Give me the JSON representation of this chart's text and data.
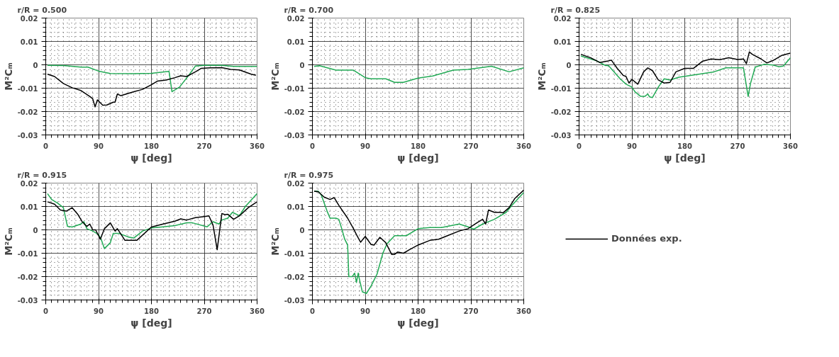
{
  "chart_data": [
    {
      "type": "line",
      "title": "r/R = 0.500",
      "xlabel": "ψ [deg]",
      "ylabel": "M²Cₘ",
      "xlim": [
        0,
        360
      ],
      "ylim": [
        -0.03,
        0.02
      ],
      "xticks": [
        0,
        90,
        180,
        270,
        360
      ],
      "yticks": [
        -0.03,
        -0.02,
        -0.01,
        0,
        0.01,
        0.02
      ],
      "grid": true,
      "series": [
        {
          "color": "#22aa55",
          "x": [
            3,
            30,
            60,
            72,
            90,
            110,
            150,
            180,
            210,
            215,
            228,
            245,
            255,
            270,
            300,
            320,
            360
          ],
          "values": [
            -0.0002,
            -0.0003,
            -0.001,
            -0.001,
            -0.0027,
            -0.0037,
            -0.0038,
            -0.0036,
            -0.0028,
            -0.0115,
            -0.0095,
            -0.004,
            -0.0005,
            -0.0002,
            -0.0002,
            -0.0007,
            -0.0007
          ]
        },
        {
          "color": "#000000",
          "x": [
            3,
            15,
            30,
            45,
            60,
            75,
            80,
            84,
            88,
            97,
            104,
            115,
            118,
            122,
            128,
            150,
            165,
            180,
            190,
            205,
            220,
            230,
            240,
            255,
            265,
            280,
            300,
            315,
            330,
            350,
            358
          ],
          "values": [
            -0.004,
            -0.005,
            -0.008,
            -0.0098,
            -0.011,
            -0.0135,
            -0.0145,
            -0.018,
            -0.015,
            -0.0173,
            -0.0172,
            -0.016,
            -0.016,
            -0.0125,
            -0.0132,
            -0.0115,
            -0.0105,
            -0.0085,
            -0.007,
            -0.0065,
            -0.0055,
            -0.0047,
            -0.005,
            -0.003,
            -0.0015,
            -0.0013,
            -0.0012,
            -0.002,
            -0.0022,
            -0.004,
            -0.0045
          ]
        }
      ]
    },
    {
      "type": "line",
      "title": "r/R = 0.700",
      "xlabel": "ψ [deg]",
      "ylabel": "M²Cₘ",
      "xlim": [
        0,
        360
      ],
      "ylim": [
        -0.03,
        0.02
      ],
      "xticks": [
        0,
        90,
        180,
        270,
        360
      ],
      "yticks": [
        -0.03,
        -0.02,
        -0.01,
        0,
        0.01,
        0.02
      ],
      "grid": true,
      "series": [
        {
          "color": "#22aa55",
          "x": [
            3,
            12,
            40,
            70,
            90,
            100,
            125,
            140,
            155,
            180,
            205,
            240,
            265,
            285,
            305,
            335,
            360
          ],
          "values": [
            -0.0007,
            -0.0004,
            -0.0023,
            -0.0023,
            -0.0055,
            -0.006,
            -0.006,
            -0.0075,
            -0.0075,
            -0.0057,
            -0.0048,
            -0.0023,
            -0.002,
            -0.0013,
            -0.0006,
            -0.003,
            -0.0013
          ]
        }
      ]
    },
    {
      "type": "line",
      "title": "r/R = 0.825",
      "xlabel": "ψ [deg]",
      "ylabel": "M²Cₘ",
      "xlim": [
        0,
        360
      ],
      "ylim": [
        -0.03,
        0.02
      ],
      "xticks": [
        0,
        90,
        180,
        270,
        360
      ],
      "yticks": [
        -0.03,
        -0.02,
        -0.01,
        0,
        0.01,
        0.02
      ],
      "grid": true,
      "series": [
        {
          "color": "#22aa55",
          "x": [
            3,
            30,
            45,
            50,
            70,
            80,
            90,
            95,
            105,
            112,
            117,
            120,
            125,
            135,
            145,
            155,
            170,
            200,
            230,
            250,
            275,
            280,
            288,
            292,
            300,
            315,
            330,
            340,
            348,
            360
          ],
          "values": [
            0.0038,
            0.0017,
            -0.0003,
            -0.0003,
            -0.006,
            -0.0083,
            -0.0095,
            -0.0115,
            -0.0135,
            -0.0135,
            -0.0125,
            -0.0137,
            -0.014,
            -0.0095,
            -0.006,
            -0.0065,
            -0.0053,
            -0.0042,
            -0.003,
            -0.0013,
            -0.0013,
            -0.0013,
            -0.0135,
            -0.008,
            -0.001,
            0.0002,
            -0.0001,
            -0.0008,
            -0.0005,
            0.003
          ]
        },
        {
          "color": "#000000",
          "x": [
            3,
            20,
            35,
            50,
            55,
            65,
            75,
            80,
            85,
            90,
            100,
            110,
            117,
            125,
            135,
            145,
            155,
            165,
            180,
            195,
            210,
            225,
            240,
            255,
            270,
            280,
            285,
            290,
            295,
            310,
            320,
            330,
            345,
            360
          ],
          "values": [
            0.0045,
            0.003,
            0.001,
            0.0017,
            0.002,
            -0.0015,
            -0.0045,
            -0.005,
            -0.0078,
            -0.0062,
            -0.0083,
            -0.003,
            -0.0013,
            -0.0025,
            -0.0065,
            -0.0078,
            -0.0075,
            -0.003,
            -0.0015,
            -0.0015,
            0.0015,
            0.0025,
            0.0022,
            0.003,
            0.0023,
            0.0025,
            0.0005,
            0.0055,
            0.0045,
            0.0025,
            0.0008,
            0.0018,
            0.004,
            0.005
          ]
        }
      ]
    },
    {
      "type": "line",
      "title": "r/R = 0.915",
      "xlabel": "ψ [deg]",
      "ylabel": "M²Cₘ",
      "xlim": [
        0,
        360
      ],
      "ylim": [
        -0.03,
        0.02
      ],
      "xticks": [
        0,
        90,
        180,
        270,
        360
      ],
      "yticks": [
        -0.03,
        -0.02,
        -0.01,
        0,
        0.01,
        0.02
      ],
      "grid": true,
      "series": [
        {
          "color": "#22aa55",
          "x": [
            3,
            10,
            20,
            30,
            37,
            45,
            60,
            65,
            70,
            80,
            90,
            95,
            100,
            110,
            115,
            125,
            140,
            150,
            165,
            180,
            200,
            220,
            240,
            250,
            275,
            285,
            295,
            300,
            310,
            318,
            330,
            340,
            360
          ],
          "values": [
            0.0155,
            0.013,
            0.0115,
            0.0095,
            0.0015,
            0.0012,
            0.0025,
            0.0035,
            0.0005,
            -0.0005,
            -0.002,
            -0.0045,
            -0.008,
            -0.0055,
            -0.0015,
            -0.0015,
            -0.003,
            -0.0035,
            -0.0005,
            0.0008,
            0.0013,
            0.0018,
            0.003,
            0.003,
            0.0013,
            0.0035,
            0.0025,
            0.0042,
            0.005,
            0.0075,
            0.006,
            0.01,
            0.0155
          ]
        },
        {
          "color": "#000000",
          "x": [
            3,
            15,
            25,
            35,
            45,
            55,
            62,
            70,
            75,
            80,
            85,
            93,
            100,
            110,
            118,
            122,
            135,
            155,
            180,
            200,
            220,
            230,
            240,
            255,
            270,
            278,
            285,
            292,
            300,
            305,
            310,
            320,
            330,
            345,
            360
          ],
          "values": [
            0.012,
            0.011,
            0.0085,
            0.008,
            0.0095,
            0.0065,
            0.0035,
            0.0015,
            0.0025,
            0,
            0,
            -0.004,
            0.0005,
            0.003,
            -0.0005,
            0.0005,
            -0.0045,
            -0.0045,
            0.0012,
            0.0025,
            0.0037,
            0.0047,
            0.0042,
            0.0052,
            0.0057,
            0.006,
            0.002,
            -0.0085,
            0.007,
            0.0065,
            0.0067,
            0.0045,
            0.006,
            0.0095,
            0.012
          ]
        }
      ]
    },
    {
      "type": "line",
      "title": "r/R = 0.975",
      "xlabel": "ψ [deg]",
      "ylabel": "M²Cₘ",
      "xlim": [
        0,
        360
      ],
      "ylim": [
        -0.03,
        0.02
      ],
      "xticks": [
        0,
        90,
        180,
        270,
        360
      ],
      "yticks": [
        -0.03,
        -0.02,
        -0.01,
        0,
        0.01,
        0.02
      ],
      "grid": true,
      "legend": "right",
      "series": [
        {
          "color": "#22aa55",
          "x": [
            3,
            10,
            15,
            25,
            30,
            40,
            45,
            50,
            55,
            60,
            62,
            68,
            72,
            75,
            78,
            80,
            85,
            92,
            100,
            110,
            120,
            127,
            140,
            160,
            180,
            200,
            220,
            250,
            265,
            275,
            290,
            310,
            330,
            340,
            360
          ],
          "values": [
            0.0165,
            0.0165,
            0.015,
            0.008,
            0.005,
            0.005,
            0.0045,
            0.0005,
            -0.004,
            -0.0065,
            -0.02,
            -0.02,
            -0.0185,
            -0.0225,
            -0.0185,
            -0.021,
            -0.0265,
            -0.0272,
            -0.024,
            -0.019,
            -0.01,
            -0.006,
            -0.0025,
            -0.0025,
            0.0005,
            0.001,
            0.001,
            0.0025,
            0.0013,
            0.0003,
            0.0025,
            0.0045,
            0.0075,
            0.0105,
            0.016
          ]
        },
        {
          "name": "Données exp.",
          "color": "#000000",
          "x": [
            3,
            10,
            20,
            30,
            37,
            45,
            60,
            70,
            75,
            82,
            90,
            100,
            105,
            115,
            125,
            135,
            140,
            145,
            155,
            165,
            180,
            200,
            215,
            230,
            250,
            265,
            280,
            290,
            295,
            300,
            310,
            320,
            325,
            335,
            345,
            360
          ],
          "values": [
            0.0165,
            0.0163,
            0.014,
            0.013,
            0.0138,
            0.0105,
            0.005,
            0.0005,
            -0.002,
            -0.0053,
            -0.0028,
            -0.0063,
            -0.0065,
            -0.0032,
            -0.0055,
            -0.0105,
            -0.0105,
            -0.0095,
            -0.01,
            -0.0085,
            -0.0065,
            -0.0045,
            -0.004,
            -0.0025,
            -0.0005,
            0.0005,
            0.003,
            0.0045,
            0.0025,
            0.0085,
            0.0075,
            0.0075,
            0.0073,
            0.0095,
            0.0135,
            0.017
          ]
        }
      ]
    }
  ]
}
